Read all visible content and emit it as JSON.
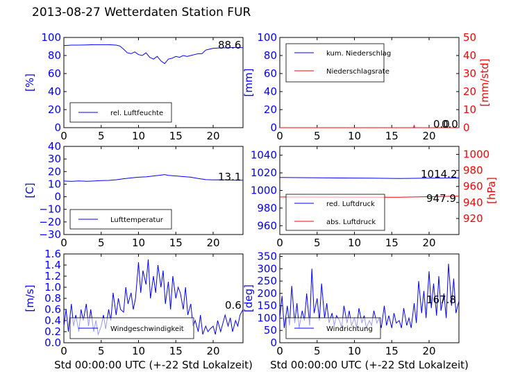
{
  "title": "2013-08-27 Wetterdaten Station FUR\u0006",
  "xlabel": "Std 00:00:00 UTC (+-22 Std Lokalzeit)",
  "colors": {
    "primary": "#0000ff",
    "secondary": "#ff0000"
  },
  "chart_data": [
    {
      "type": "line",
      "ylabel": "[%]",
      "xlim": [
        0,
        24
      ],
      "ylim": [
        0,
        100
      ],
      "xticks": [
        "0",
        "5",
        "10",
        "15",
        "20"
      ],
      "yticks": [
        "0",
        "20",
        "40",
        "60",
        "80",
        "100"
      ],
      "legend": {
        "position": "lower-left",
        "entries": [
          "rel. Luftfeuchte"
        ]
      },
      "annotation": "88.6",
      "series": [
        {
          "name": "rel. Luftfeuchte",
          "color": "#0000ff",
          "x": [
            0,
            1,
            2,
            3,
            4,
            5,
            6,
            7,
            7.5,
            8,
            8.5,
            9,
            9.5,
            10,
            10.5,
            11,
            11.5,
            12,
            12.5,
            13,
            13.5,
            14,
            14.5,
            15,
            15.5,
            16,
            16.5,
            17,
            17.5,
            18,
            18.5,
            19,
            19.5,
            20,
            21,
            22,
            23,
            24
          ],
          "y": [
            91,
            91.5,
            91.5,
            91.8,
            92,
            92,
            92,
            91.5,
            90.5,
            87,
            83,
            82,
            84,
            81,
            80,
            83,
            78,
            76,
            79,
            74,
            71,
            76,
            77,
            79,
            78,
            80,
            79,
            80,
            81,
            82,
            82,
            86,
            87,
            88,
            88.5,
            88.6,
            89,
            88.6
          ]
        }
      ]
    },
    {
      "type": "line",
      "ylabel": "[mm]",
      "ylabel2": "[mm/std]",
      "xlim": [
        0,
        24
      ],
      "ylim": [
        0,
        100
      ],
      "ylim2": [
        0,
        50
      ],
      "xticks": [
        "0",
        "5",
        "10",
        "15",
        "20"
      ],
      "yticks": [
        "0",
        "20",
        "40",
        "60",
        "80",
        "100"
      ],
      "yticks2": [
        "0",
        "10",
        "20",
        "30",
        "40",
        "50"
      ],
      "legend": {
        "position": "upper-left",
        "entries": [
          "kum. Niederschlag",
          "Niederschlagsrate"
        ]
      },
      "annotation": "0.0",
      "annotation2": "0.0",
      "series": [
        {
          "name": "kum. Niederschlag",
          "color": "#0000ff",
          "axis": "left",
          "x": [
            0,
            24
          ],
          "y": [
            0,
            0
          ]
        },
        {
          "name": "Niederschlagsrate",
          "color": "#ff0000",
          "axis": "right",
          "x": [
            0,
            17.9,
            18,
            18.1,
            24
          ],
          "y": [
            0,
            0,
            1.2,
            0,
            0
          ]
        }
      ]
    },
    {
      "type": "line",
      "ylabel": "[C]",
      "xlim": [
        0,
        24
      ],
      "ylim": [
        -30,
        40
      ],
      "xticks": [
        "0",
        "5",
        "10",
        "15",
        "20"
      ],
      "yticks": [
        "−30",
        "−20",
        "−10",
        "0",
        "10",
        "20",
        "30",
        "40"
      ],
      "legend": {
        "position": "lower-left",
        "entries": [
          "Lufttemperatur"
        ]
      },
      "annotation": "13.1",
      "series": [
        {
          "name": "Lufttemperatur",
          "color": "#0000ff",
          "x": [
            0,
            1,
            2,
            3,
            4,
            5,
            6,
            7,
            8,
            9,
            10,
            11,
            12,
            13,
            13.5,
            14,
            15,
            16,
            17,
            18,
            19,
            20,
            21,
            22,
            23,
            24
          ],
          "y": [
            12.5,
            12.2,
            12.6,
            12.3,
            12.5,
            12.8,
            13,
            13.5,
            14.3,
            15,
            15.5,
            15.8,
            16.5,
            17.2,
            17.6,
            17,
            16.5,
            16,
            15.5,
            14.5,
            13.6,
            13.4,
            13.5,
            13.3,
            13.1,
            13.1
          ]
        }
      ]
    },
    {
      "type": "line",
      "ylabel2": "[hPa]",
      "xlim": [
        0,
        24
      ],
      "ylim": [
        950,
        1050
      ],
      "ylim2": [
        900,
        1010
      ],
      "xticks": [
        "0",
        "5",
        "10",
        "15",
        "20"
      ],
      "yticks": [
        "960",
        "980",
        "1000",
        "1020",
        "1040"
      ],
      "yticks2": [
        "920",
        "940",
        "960",
        "980",
        "1000"
      ],
      "legend": {
        "position": "lower-left",
        "entries": [
          "red. Luftdruck",
          "abs. Luftdruck"
        ]
      },
      "annotation": "1014.2",
      "annotation2": "947.9",
      "series": [
        {
          "name": "red. Luftdruck",
          "color": "#0000ff",
          "axis": "left",
          "x": [
            0,
            4,
            8,
            12,
            16,
            20,
            24
          ],
          "y": [
            1014.8,
            1014.5,
            1014.2,
            1014,
            1013.6,
            1013.9,
            1014.2
          ]
        },
        {
          "name": "abs. Luftdruck",
          "color": "#ff0000",
          "axis": "right",
          "x": [
            0,
            4,
            8,
            12,
            16,
            20,
            24
          ],
          "y": [
            946.9,
            946.8,
            946.7,
            946.6,
            946.6,
            947.2,
            947.9
          ]
        }
      ]
    },
    {
      "type": "line",
      "ylabel": "[m/s]",
      "xlim": [
        0,
        24
      ],
      "ylim": [
        0,
        1.6
      ],
      "xticks": [
        "0",
        "5",
        "10",
        "15",
        "20"
      ],
      "yticks": [
        "0.0",
        "0.2",
        "0.4",
        "0.6",
        "0.8",
        "1.0",
        "1.2",
        "1.4",
        "1.6"
      ],
      "legend": {
        "position": "lower-left",
        "entries": [
          "Windgeschwindigkeit"
        ]
      },
      "annotation": "0.6",
      "series": [
        {
          "name": "Windgeschwindigkeit",
          "color": "#0000ff",
          "x": [
            0,
            0.3,
            0.6,
            1,
            1.3,
            1.6,
            2,
            2.3,
            2.6,
            3,
            3.3,
            3.6,
            4,
            4.3,
            4.6,
            5,
            5.3,
            5.6,
            6,
            6.3,
            6.6,
            7,
            7.3,
            7.6,
            8,
            8.3,
            8.6,
            9,
            9.3,
            9.6,
            10,
            10.3,
            10.6,
            11,
            11.3,
            11.6,
            12,
            12.3,
            12.6,
            13,
            13.3,
            13.6,
            14,
            14.3,
            14.6,
            15,
            15.3,
            15.6,
            16,
            16.3,
            16.6,
            17,
            17.3,
            17.6,
            18,
            18.3,
            18.6,
            19,
            19.3,
            19.6,
            20,
            20.3,
            20.6,
            21,
            21.3,
            21.6,
            22,
            22.3,
            22.6,
            23,
            23.3,
            23.6,
            24
          ],
          "y": [
            0.3,
            0.6,
            0.2,
            0.7,
            0.3,
            0.5,
            0.2,
            0.6,
            0.4,
            0.7,
            0.3,
            0.6,
            0.2,
            0.4,
            0.15,
            0.3,
            0.5,
            0.25,
            0.6,
            0.4,
            0.9,
            0.5,
            0.8,
            0.6,
            0.55,
            1.0,
            0.7,
            0.9,
            0.6,
            0.8,
            1.45,
            0.9,
            1.3,
            1.05,
            1.5,
            0.8,
            1.2,
            0.9,
            1.4,
            1.0,
            1.3,
            0.7,
            1.1,
            0.6,
            1.2,
            0.8,
            1.0,
            0.9,
            0.6,
            1.0,
            0.5,
            0.7,
            0.3,
            0.4,
            0.2,
            0.5,
            0.15,
            0.3,
            0.2,
            0.25,
            0.3,
            0.15,
            0.4,
            0.2,
            0.35,
            0.5,
            0.3,
            0.45,
            0.2,
            0.4,
            0.3,
            0.5,
            0.6
          ]
        }
      ]
    },
    {
      "type": "line",
      "ylabel": "[deg]",
      "xlim": [
        0,
        24
      ],
      "ylim": [
        0,
        360
      ],
      "xticks": [
        "0",
        "5",
        "10",
        "15",
        "20"
      ],
      "yticks": [
        "0",
        "50",
        "100",
        "150",
        "200",
        "250",
        "300",
        "350"
      ],
      "legend": {
        "position": "lower-left",
        "entries": [
          "Windrichtung"
        ]
      },
      "annotation": "167.8",
      "series": [
        {
          "name": "Windrichtung",
          "color": "#0000ff",
          "x": [
            0,
            0.3,
            0.6,
            1,
            1.3,
            1.6,
            2,
            2.3,
            2.6,
            3,
            3.3,
            3.6,
            4,
            4.3,
            4.6,
            5,
            5.3,
            5.6,
            6,
            6.3,
            6.6,
            7,
            7.3,
            7.6,
            8,
            8.3,
            8.6,
            9,
            9.3,
            9.6,
            10,
            10.3,
            10.6,
            11,
            11.3,
            11.6,
            12,
            12.3,
            12.6,
            13,
            13.3,
            13.6,
            14,
            14.3,
            14.6,
            15,
            15.3,
            15.6,
            16,
            16.3,
            16.6,
            17,
            17.3,
            17.6,
            18,
            18.3,
            18.6,
            19,
            19.3,
            19.6,
            20,
            20.3,
            20.6,
            21,
            21.3,
            21.6,
            22,
            22.3,
            22.6,
            23,
            23.3,
            23.6,
            24
          ],
          "y": [
            100,
            190,
            60,
            150,
            70,
            230,
            80,
            160,
            60,
            130,
            90,
            200,
            70,
            300,
            120,
            180,
            90,
            240,
            100,
            160,
            80,
            120,
            70,
            110,
            90,
            60,
            150,
            80,
            130,
            70,
            100,
            60,
            140,
            80,
            110,
            60,
            90,
            70,
            130,
            80,
            100,
            60,
            150,
            70,
            110,
            60,
            120,
            80,
            90,
            60,
            140,
            70,
            100,
            60,
            160,
            80,
            250,
            120,
            210,
            100,
            290,
            140,
            240,
            110,
            270,
            130,
            200,
            100,
            320,
            150,
            260,
            120,
            170
          ]
        }
      ]
    }
  ]
}
